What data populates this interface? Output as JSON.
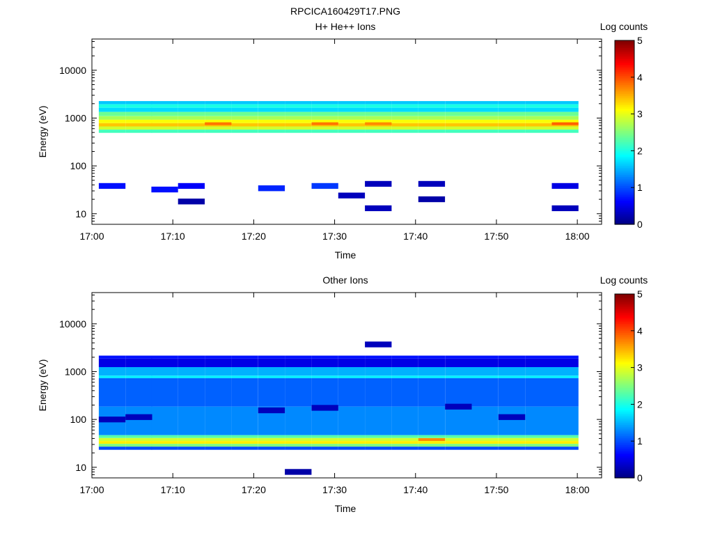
{
  "figure_title": "RPCICA160429T17.PNG",
  "colors": {
    "colormap": [
      "#00007f",
      "#0000ff",
      "#007fff",
      "#00ffff",
      "#7fff7f",
      "#ffff00",
      "#ff7f00",
      "#ff0000",
      "#7f0000"
    ],
    "axes": "#000000",
    "background": "#ffffff"
  },
  "chart_data": [
    {
      "type": "heatmap",
      "title": "H+ He++ Ions",
      "xlabel": "Time",
      "ylabel": "Energy (eV)",
      "x_ticks": [
        "17:00",
        "17:10",
        "17:20",
        "17:30",
        "17:40",
        "17:50",
        "18:00"
      ],
      "x_range_min": [
        0,
        63
      ],
      "y_scale": "log",
      "y_ticks": [
        "10",
        "100",
        "1000",
        "10000"
      ],
      "y_range": [
        6,
        45000
      ],
      "colorbar": {
        "title": "Log counts",
        "range": [
          0,
          5
        ],
        "ticks": [
          "0",
          "1",
          "2",
          "3",
          "4",
          "5"
        ]
      },
      "time_bins_min": [
        2.5,
        5.8,
        9.0,
        12.3,
        15.6,
        18.9,
        22.2,
        25.5,
        28.8,
        32.1,
        35.4,
        38.7,
        42.0,
        45.3,
        48.6,
        51.9,
        55.2,
        58.5
      ],
      "band_profile": [
        {
          "energy_ev": 2100,
          "log_counts": 1.6
        },
        {
          "energy_ev": 1800,
          "log_counts": 2.0
        },
        {
          "energy_ev": 1500,
          "log_counts": 1.7
        },
        {
          "energy_ev": 1200,
          "log_counts": 2.4
        },
        {
          "energy_ev": 1000,
          "log_counts": 2.7
        },
        {
          "energy_ev": 850,
          "log_counts": 3.1
        },
        {
          "energy_ev": 720,
          "log_counts": 3.4
        },
        {
          "energy_ev": 620,
          "log_counts": 2.9
        },
        {
          "energy_ev": 530,
          "log_counts": 2.2
        }
      ],
      "peak_bins": [
        {
          "time_min": 15.6,
          "energy_ev": 760,
          "log_counts": 3.8
        },
        {
          "time_min": 28.8,
          "energy_ev": 760,
          "log_counts": 3.8
        },
        {
          "time_min": 35.4,
          "energy_ev": 760,
          "log_counts": 3.7
        },
        {
          "time_min": 58.5,
          "energy_ev": 760,
          "log_counts": 3.9
        }
      ],
      "sparse_counts": [
        {
          "time_min": 2.5,
          "energy_ev": 38,
          "log_counts": 0.7
        },
        {
          "time_min": 9.0,
          "energy_ev": 32,
          "log_counts": 0.7
        },
        {
          "time_min": 12.3,
          "energy_ev": 18,
          "log_counts": 0.2
        },
        {
          "time_min": 12.3,
          "energy_ev": 38,
          "log_counts": 0.6
        },
        {
          "time_min": 22.2,
          "energy_ev": 34,
          "log_counts": 0.8
        },
        {
          "time_min": 28.8,
          "energy_ev": 38,
          "log_counts": 0.9
        },
        {
          "time_min": 32.1,
          "energy_ev": 24,
          "log_counts": 0.3
        },
        {
          "time_min": 35.4,
          "energy_ev": 13,
          "log_counts": 0.3
        },
        {
          "time_min": 35.4,
          "energy_ev": 42,
          "log_counts": 0.3
        },
        {
          "time_min": 42.0,
          "energy_ev": 20,
          "log_counts": 0.2
        },
        {
          "time_min": 42.0,
          "energy_ev": 42,
          "log_counts": 0.3
        },
        {
          "time_min": 58.5,
          "energy_ev": 13,
          "log_counts": 0.3
        },
        {
          "time_min": 58.5,
          "energy_ev": 38,
          "log_counts": 0.5
        }
      ]
    },
    {
      "type": "heatmap",
      "title": "Other Ions",
      "xlabel": "Time",
      "ylabel": "Energy (eV)",
      "x_ticks": [
        "17:00",
        "17:10",
        "17:20",
        "17:30",
        "17:40",
        "17:50",
        "18:00"
      ],
      "x_range_min": [
        0,
        63
      ],
      "y_scale": "log",
      "y_ticks": [
        "10",
        "100",
        "1000",
        "10000"
      ],
      "y_range": [
        6,
        45000
      ],
      "colorbar": {
        "title": "Log counts",
        "range": [
          0,
          5
        ],
        "ticks": [
          "0",
          "1",
          "2",
          "3",
          "4",
          "5"
        ]
      },
      "time_bins_min": [
        2.5,
        5.8,
        9.0,
        12.3,
        15.6,
        18.9,
        22.2,
        25.5,
        28.8,
        32.1,
        35.4,
        38.7,
        42.0,
        45.3,
        48.6,
        51.9,
        55.2,
        58.5
      ],
      "band_profile": [
        {
          "energy_ev": 2000,
          "log_counts": 0.7
        },
        {
          "energy_ev": 1750,
          "log_counts": 0.5
        },
        {
          "energy_ev": 880,
          "log_counts": 1.5
        },
        {
          "energy_ev": 770,
          "log_counts": 1.8
        },
        {
          "energy_ev": 690,
          "log_counts": 1.1
        },
        {
          "energy_ev": 50,
          "log_counts": 1.3
        },
        {
          "energy_ev": 44,
          "log_counts": 2.3
        },
        {
          "energy_ev": 38,
          "log_counts": 2.9
        },
        {
          "energy_ev": 33,
          "log_counts": 3.2
        },
        {
          "energy_ev": 29,
          "log_counts": 2.5
        },
        {
          "energy_ev": 25,
          "log_counts": 1.0
        }
      ],
      "peak_bins": [
        {
          "time_min": 42.0,
          "energy_ev": 38,
          "log_counts": 3.7
        }
      ],
      "sparse_counts": [
        {
          "time_min": 25.5,
          "energy_ev": 8,
          "log_counts": 0.2
        },
        {
          "time_min": 35.4,
          "energy_ev": 3700,
          "log_counts": 0.3
        },
        {
          "time_min": 2.5,
          "energy_ev": 100,
          "log_counts": 0.3
        },
        {
          "time_min": 5.8,
          "energy_ev": 112,
          "log_counts": 0.3
        },
        {
          "time_min": 22.2,
          "energy_ev": 155,
          "log_counts": 0.3
        },
        {
          "time_min": 28.8,
          "energy_ev": 175,
          "log_counts": 0.3
        },
        {
          "time_min": 45.3,
          "energy_ev": 185,
          "log_counts": 0.3
        },
        {
          "time_min": 51.9,
          "energy_ev": 112,
          "log_counts": 0.3
        }
      ]
    }
  ]
}
